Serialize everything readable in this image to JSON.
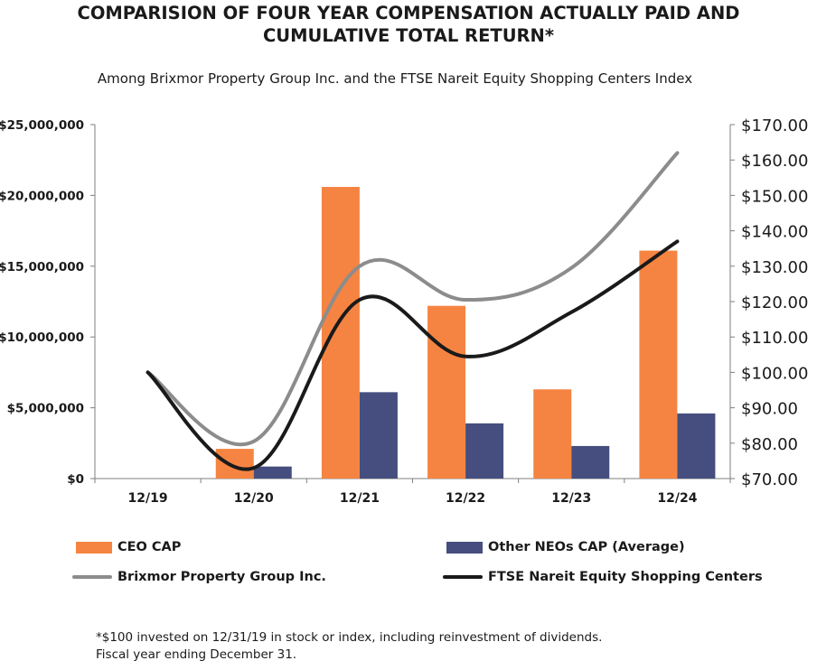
{
  "title": {
    "line1": "COMPARISION OF FOUR YEAR COMPENSATION ACTUALLY PAID AND",
    "line2": "CUMULATIVE TOTAL RETURN*"
  },
  "subtitle": "Among Brixmor Property Group Inc. and the FTSE Nareit Equity Shopping Centers Index",
  "chart_data": {
    "type": "bar+line",
    "categories": [
      "12/19",
      "12/20",
      "12/21",
      "12/22",
      "12/23",
      "12/24"
    ],
    "left_axis": {
      "ylim": [
        0,
        25000000
      ],
      "ticks": [
        0,
        5000000,
        10000000,
        15000000,
        20000000,
        25000000
      ],
      "tick_labels": [
        "$0",
        "$5,000,000",
        "$10,000,000",
        "$15,000,000",
        "$20,000,000",
        "$25,000,000"
      ]
    },
    "right_axis": {
      "ylim": [
        70,
        170
      ],
      "ticks": [
        70,
        80,
        90,
        100,
        110,
        120,
        130,
        140,
        150,
        160,
        170
      ],
      "tick_labels": [
        "$70.00",
        "$80.00",
        "$90.00",
        "$100.00",
        "$110.00",
        "$120.00",
        "$130.00",
        "$140.00",
        "$150.00",
        "$160.00",
        "$170.00"
      ]
    },
    "bar_series": [
      {
        "name": "CEO CAP",
        "color": "#F58442",
        "values": [
          0,
          2100000,
          20600000,
          12200000,
          6300000,
          16100000
        ]
      },
      {
        "name": "Other NEOs CAP (Average)",
        "color": "#454E7E",
        "values": [
          0,
          850000,
          6100000,
          3900000,
          2300000,
          4600000
        ]
      }
    ],
    "line_series": [
      {
        "name": "Brixmor Property Group Inc.",
        "color": "#8C8C8C",
        "values": [
          100,
          80.5,
          130,
          120.5,
          129.5,
          162
        ]
      },
      {
        "name": "FTSE Nareit Equity Shopping Centers",
        "color": "#1A1A1A",
        "values": [
          100,
          73,
          120.5,
          104.5,
          117,
          137
        ]
      }
    ]
  },
  "legend": {
    "ceo": "CEO CAP",
    "neo": "Other NEOs CAP (Average)",
    "brixmor": "Brixmor Property Group Inc.",
    "ftse": "FTSE Nareit Equity Shopping Centers"
  },
  "footnote": {
    "line1": "*$100 invested on 12/31/19 in stock or index, including reinvestment of dividends.",
    "line2": "Fiscal year ending December 31."
  }
}
